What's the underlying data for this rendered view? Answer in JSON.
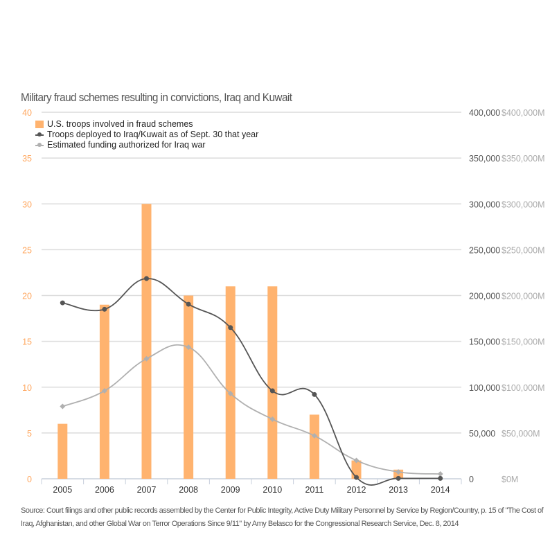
{
  "chart_data": {
    "type": "bar+line",
    "title": "Military fraud schemes resulting in convictions, Iraq and Kuwait",
    "categories": [
      "2005",
      "2006",
      "2007",
      "2008",
      "2009",
      "2010",
      "2011",
      "2012",
      "2013",
      "2014"
    ],
    "left_axis": {
      "ylim": [
        0,
        40
      ],
      "ticks": [
        "0",
        "5",
        "10",
        "15",
        "20",
        "25",
        "30",
        "35",
        "40"
      ],
      "color": "#ffa75f"
    },
    "right_axis_troops": {
      "ylim": [
        0,
        400000
      ],
      "ticks": [
        "0",
        "50,000",
        "100,000",
        "150,000",
        "200,000",
        "250,000",
        "300,000",
        "350,000",
        "400,000"
      ],
      "color": "#555555"
    },
    "right_axis_funding": {
      "ylim": [
        0,
        400000
      ],
      "ticks": [
        "$0M",
        "$50,000M",
        "$100,000M",
        "$150,000M",
        "$200,000M",
        "$250,000M",
        "$300,000M",
        "$350,000M",
        "$400,000M"
      ],
      "color": "#aaaaaa"
    },
    "grid": true,
    "legend_position": "top-left",
    "series": [
      {
        "name": "U.S. troops involved in fraud schemes",
        "type": "bar",
        "axis": "left",
        "color": "#ffb36f",
        "values": [
          6,
          19,
          30,
          20,
          21,
          21,
          7,
          2,
          1,
          0
        ]
      },
      {
        "name": "Troops deployed to Iraq/Kuwait as of Sept. 30 that year",
        "type": "line",
        "axis": "right",
        "color": "#555555",
        "values": [
          192000,
          185000,
          218500,
          190500,
          165000,
          96000,
          92000,
          1500,
          500,
          500
        ]
      },
      {
        "name": "Estimated funding authorized for Iraq war",
        "type": "line",
        "axis": "right",
        "color": "#b0b0b0",
        "values": [
          79000,
          96000,
          131000,
          143600,
          93000,
          65000,
          47000,
          20000,
          7500,
          5300
        ]
      }
    ]
  },
  "source": "Source: Court filings and other public records assembled by the Center for Public Integrity, Active Duty Military Personnel by Service by Region/Country, p. 15 of \"The Cost of Iraq, Afghanistan, and other Global War on Terror Operations Since 9/11\" by Amy Belasco for the Congressional Research Service, Dec. 8, 2014"
}
